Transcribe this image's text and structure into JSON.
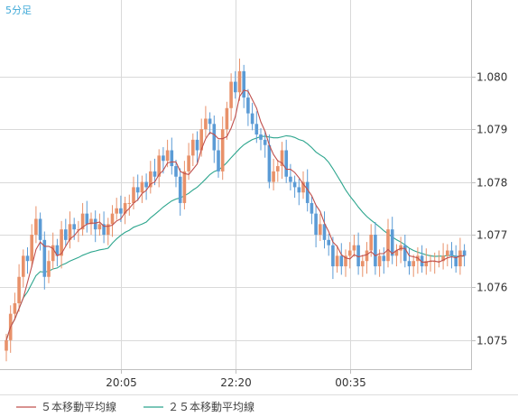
{
  "chart_data": {
    "type": "candlestick",
    "timeframe_label": "5分足",
    "x_tick_labels": [
      "20:05",
      "22:20",
      "00:35"
    ],
    "y_tick_labels": [
      "1.080",
      "1.079",
      "1.078",
      "1.077",
      "1.076",
      "1.075"
    ],
    "y_ticks": [
      1.08,
      1.079,
      1.078,
      1.077,
      1.076,
      1.075
    ],
    "ylim": [
      1.07445,
      1.08145
    ],
    "grid": true,
    "legend_position": "bottom-left",
    "colors": {
      "up": "#e8916a",
      "down": "#5b9bd5",
      "ma5": "#c0504d",
      "ma25": "#2ca58d",
      "grid": "#d9d9d9",
      "axis": "#bfbfbf"
    },
    "series": [
      {
        "name": "５本移動平均線",
        "color": "#c0504d"
      },
      {
        "name": "２５本移動平均線",
        "color": "#2ca58d"
      }
    ],
    "close": [
      1.075,
      1.0755,
      1.0757,
      1.0762,
      1.0766,
      1.0765,
      1.077,
      1.0773,
      1.0769,
      1.0762,
      1.0765,
      1.0768,
      1.0766,
      1.0771,
      1.0769,
      1.0772,
      1.0771,
      1.0771,
      1.0774,
      1.0772,
      1.0773,
      1.0771,
      1.0772,
      1.077,
      1.0772,
      1.0774,
      1.0775,
      1.0774,
      1.0776,
      1.0776,
      1.0779,
      1.0778,
      1.078,
      1.0779,
      1.0782,
      1.0781,
      1.0785,
      1.0784,
      1.0786,
      1.0783,
      1.0781,
      1.0776,
      1.0782,
      1.0785,
      1.0788,
      1.0786,
      1.079,
      1.0792,
      1.0791,
      1.0786,
      1.0782,
      1.079,
      1.0794,
      1.0799,
      1.0797,
      1.0801,
      1.0796,
      1.0793,
      1.0791,
      1.0789,
      1.0788,
      1.0787,
      1.078,
      1.0782,
      1.0783,
      1.0786,
      1.0781,
      1.078,
      1.0779,
      1.0778,
      1.078,
      1.0776,
      1.0774,
      1.077,
      1.0772,
      1.0769,
      1.0768,
      1.0764,
      1.0766,
      1.0764,
      1.0766,
      1.0767,
      1.0768,
      1.0764,
      1.0765,
      1.0767,
      1.077,
      1.0764,
      1.0766,
      1.0765,
      1.0771,
      1.0766,
      1.0767,
      1.0768,
      1.0765,
      1.0764,
      1.0765,
      1.0766,
      1.0764,
      1.0765,
      1.0765,
      1.0765,
      1.0765,
      1.0766,
      1.0767,
      1.0766,
      1.0764,
      1.0767,
      1.0766
    ]
  },
  "legend": {
    "ma5": "５本移動平均線",
    "ma25": "２５本移動平均線"
  }
}
